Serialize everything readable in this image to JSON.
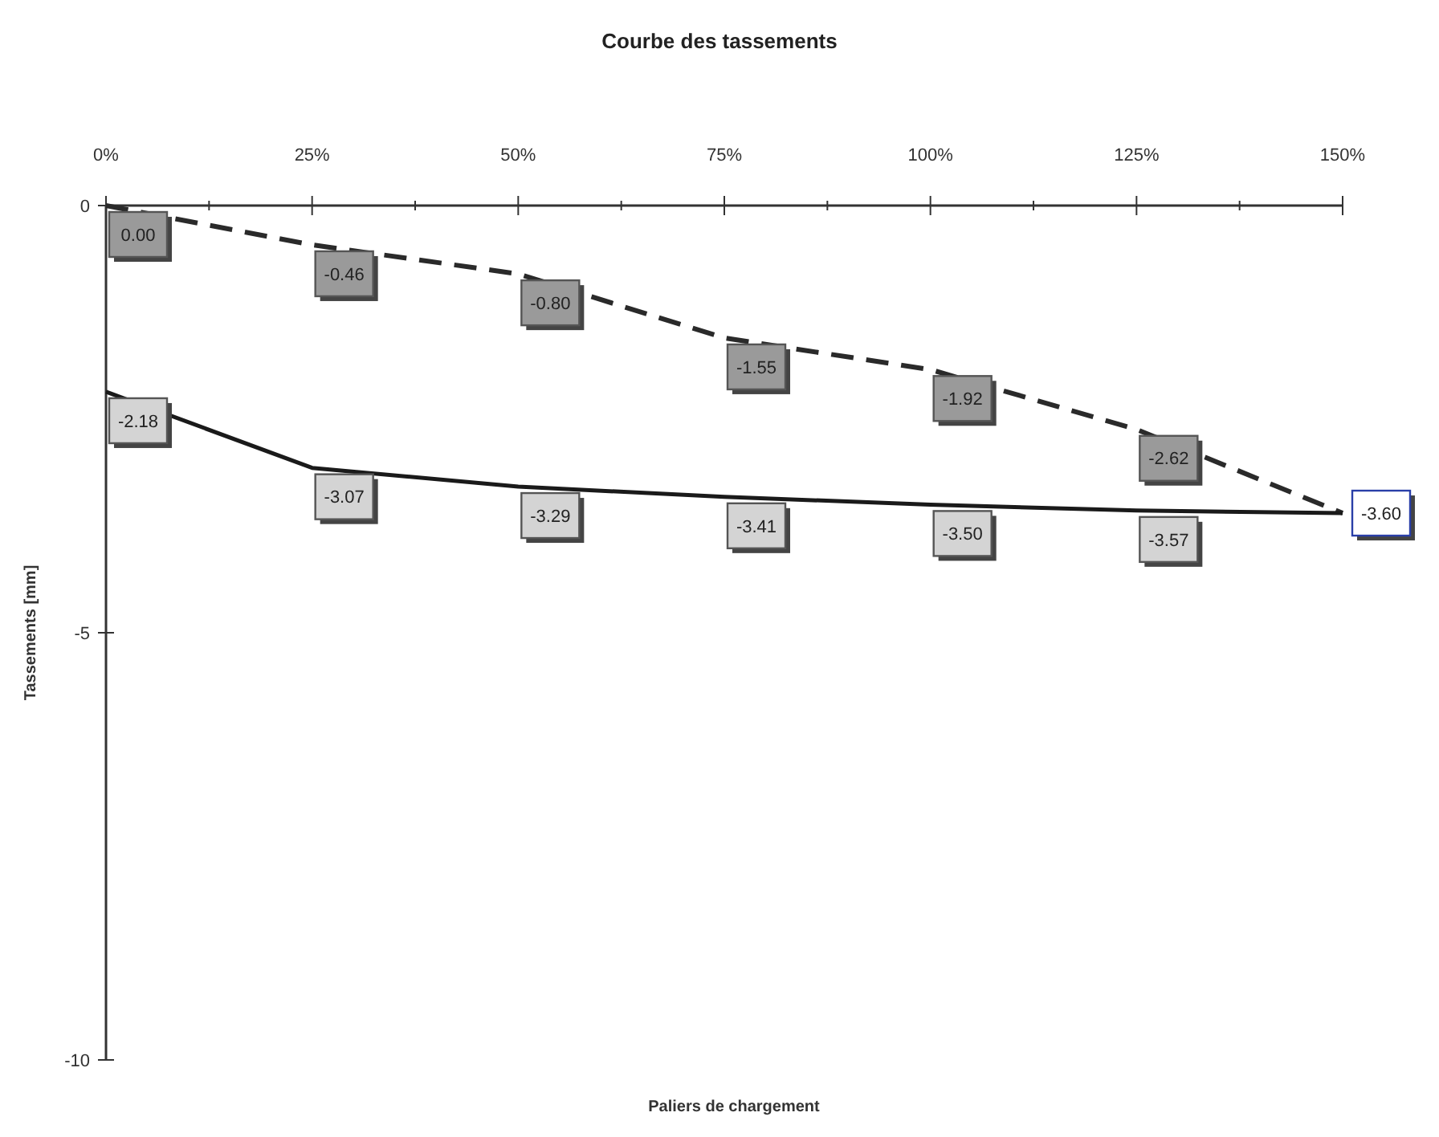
{
  "chart_data": {
    "type": "line",
    "title": "Courbe des tassements",
    "xlabel": "Paliers de chargement",
    "ylabel": "Tassements [mm]",
    "x": [
      0,
      25,
      50,
      75,
      100,
      125,
      150
    ],
    "xlim": [
      0,
      150
    ],
    "xticks": [
      {
        "value": 0,
        "label": "0%"
      },
      {
        "value": 12.5,
        "label": null
      },
      {
        "value": 25,
        "label": "25%"
      },
      {
        "value": 37.5,
        "label": null
      },
      {
        "value": 50,
        "label": "50%"
      },
      {
        "value": 62.5,
        "label": null
      },
      {
        "value": 75,
        "label": "75%"
      },
      {
        "value": 87.5,
        "label": null
      },
      {
        "value": 100,
        "label": "100%"
      },
      {
        "value": 112.5,
        "label": null
      },
      {
        "value": 125,
        "label": "125%"
      },
      {
        "value": 137.5,
        "label": null
      },
      {
        "value": 150,
        "label": "150%"
      }
    ],
    "ylim": [
      -10,
      0
    ],
    "yticks": [
      0,
      -5,
      -10
    ],
    "marker": "none",
    "grid": false,
    "series": [
      {
        "color": "#2a2a2a",
        "line_style": "dashed",
        "values": [
          0.0,
          -0.46,
          -0.8,
          -1.55,
          -1.92,
          -2.62,
          -3.6
        ],
        "value_labels": [
          "0.00",
          "-0.46",
          "-0.80",
          "-1.55",
          "-1.92",
          "-2.62",
          null
        ]
      },
      {
        "color": "#1a1a1a",
        "line_style": "solid",
        "values": [
          -2.18,
          -3.07,
          -3.29,
          -3.41,
          -3.5,
          -3.57,
          -3.6
        ],
        "value_labels": [
          "-2.18",
          "-3.07",
          "-3.29",
          "-3.41",
          "-3.50",
          "-3.57",
          "-3.60"
        ]
      }
    ]
  }
}
